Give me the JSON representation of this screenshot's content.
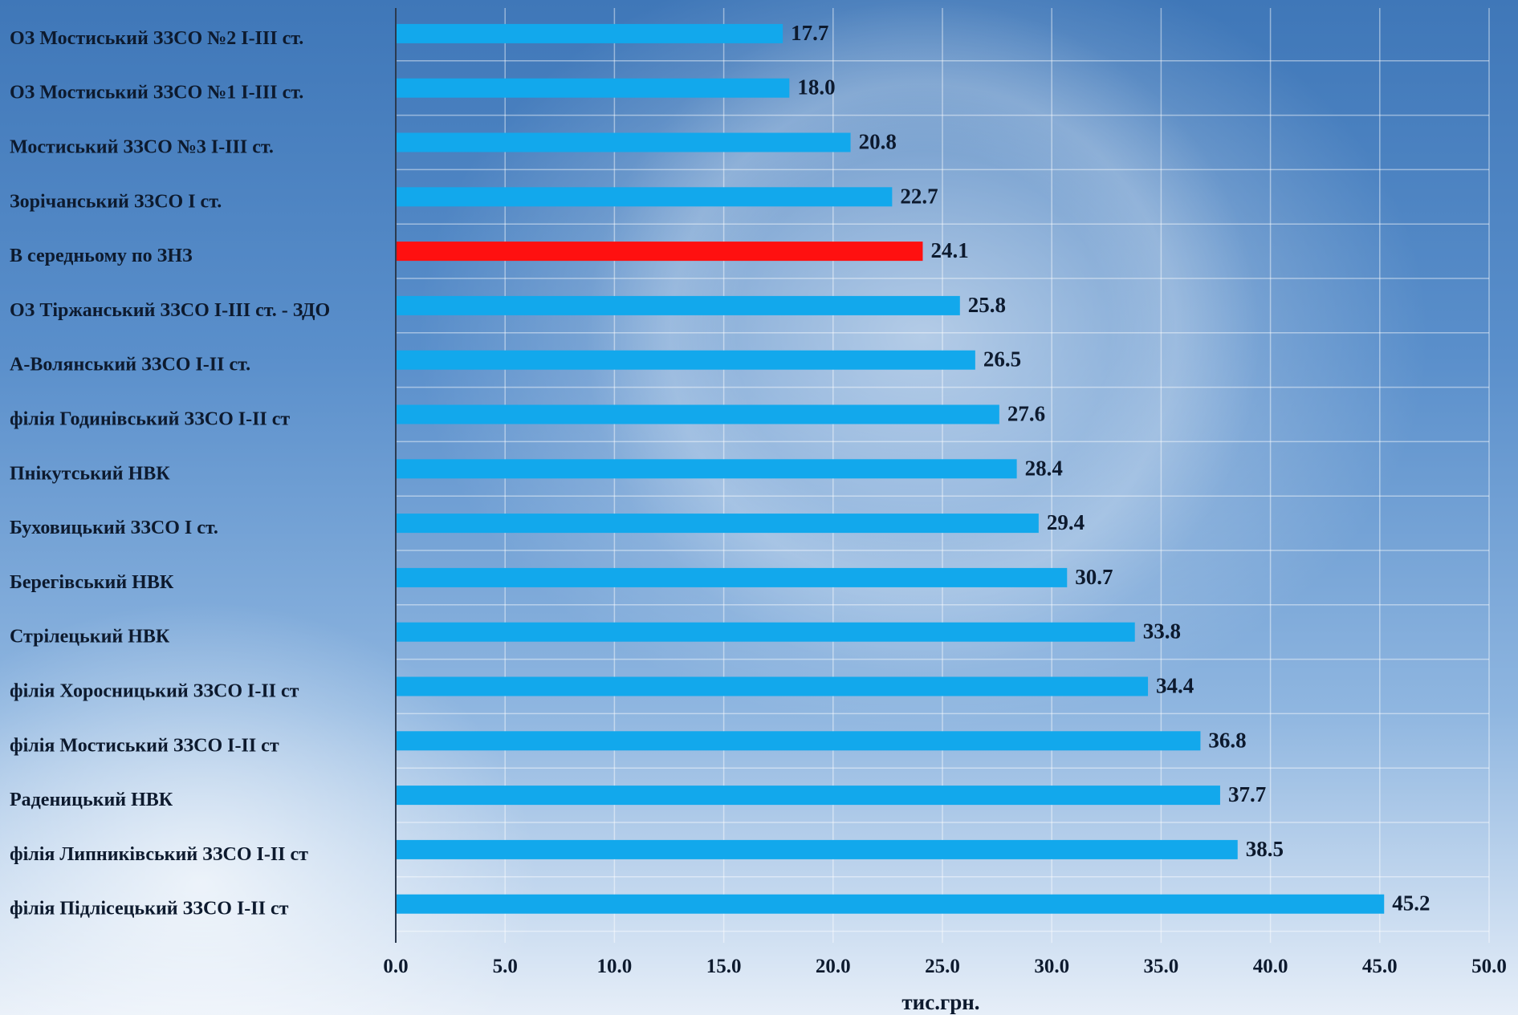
{
  "chart_data": {
    "type": "bar",
    "orientation": "horizontal",
    "xlabel": "тис.грн.",
    "xlim": [
      0,
      50
    ],
    "xticks": [
      "0.0",
      "5.0",
      "10.0",
      "15.0",
      "20.0",
      "25.0",
      "30.0",
      "35.0",
      "40.0",
      "45.0",
      "50.0"
    ],
    "grid": true,
    "colors": {
      "default": "#12a8ec",
      "highlight": "#ff1010"
    },
    "bars": [
      {
        "category": "ОЗ Мостиський ЗЗСО №2 І-ІІІ ст.",
        "value": 17.7,
        "label": "17.7",
        "highlight": false
      },
      {
        "category": "ОЗ Мостиський  ЗЗСО №1 І-ІІІ ст.",
        "value": 18.0,
        "label": "18.0",
        "highlight": false
      },
      {
        "category": "Мостиський ЗЗСО №3 І-ІІІ ст.",
        "value": 20.8,
        "label": "20.8",
        "highlight": false
      },
      {
        "category": "Зорічанський ЗЗСО І ст.",
        "value": 22.7,
        "label": "22.7",
        "highlight": false
      },
      {
        "category": "В середньому по ЗНЗ",
        "value": 24.1,
        "label": "24.1",
        "highlight": true
      },
      {
        "category": "ОЗ Тіржанський ЗЗСО  І-ІІІ ст. - ЗДО",
        "value": 25.8,
        "label": "25.8",
        "highlight": false
      },
      {
        "category": "А-Волянський ЗЗСО І-ІІ ст.",
        "value": 26.5,
        "label": "26.5",
        "highlight": false
      },
      {
        "category": "філія Годинівський ЗЗСО І-ІІ ст",
        "value": 27.6,
        "label": "27.6",
        "highlight": false
      },
      {
        "category": "Пнікутський НВК",
        "value": 28.4,
        "label": "28.4",
        "highlight": false
      },
      {
        "category": "Буховицький ЗЗСО І ст.",
        "value": 29.4,
        "label": "29.4",
        "highlight": false
      },
      {
        "category": "Берегівський НВК",
        "value": 30.7,
        "label": "30.7",
        "highlight": false
      },
      {
        "category": "Стрілецький НВК",
        "value": 33.8,
        "label": "33.8",
        "highlight": false
      },
      {
        "category": "філія Хоросницький ЗЗСО І-ІІ ст",
        "value": 34.4,
        "label": "34.4",
        "highlight": false
      },
      {
        "category": "філія Мостиський ЗЗСО  І-ІІ ст",
        "value": 36.8,
        "label": "36.8",
        "highlight": false
      },
      {
        "category": "Раденицький НВК",
        "value": 37.7,
        "label": "37.7",
        "highlight": false
      },
      {
        "category": "філія Липниківський ЗЗСО І-ІІ ст",
        "value": 38.5,
        "label": "38.5",
        "highlight": false
      },
      {
        "category": "філія Підлісецький ЗЗСО  І-ІІ ст",
        "value": 45.2,
        "label": "45.2",
        "highlight": false
      }
    ]
  }
}
